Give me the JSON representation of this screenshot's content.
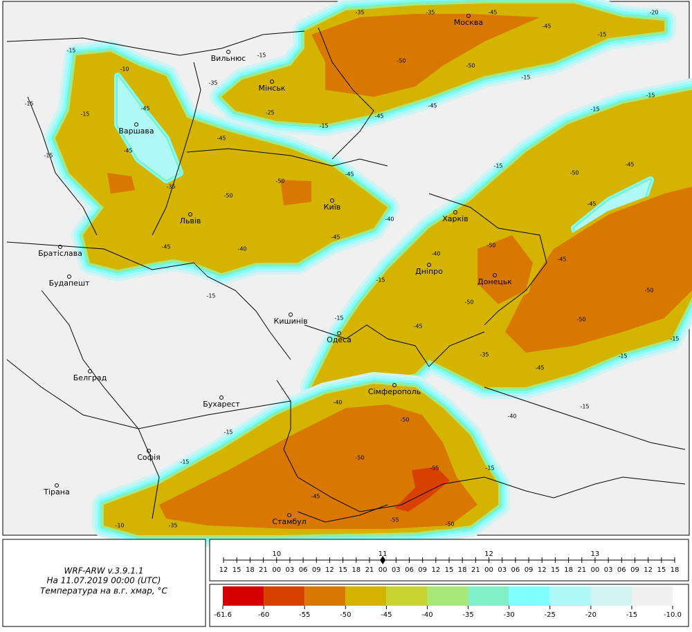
{
  "map": {
    "cities": [
      "Москва",
      "Вильнюс",
      "Мінськ",
      "Варшава",
      "Київ",
      "Львів",
      "Братіслава",
      "Будапешт",
      "Кишинів",
      "Харків",
      "Дніпро",
      "Донецьк",
      "Одеса",
      "Белград",
      "Бухарест",
      "Сімферополь",
      "Софія",
      "Тірана",
      "Стамбул"
    ],
    "contour_labels": [
      "-35",
      "-35",
      "-45",
      "-20",
      "-15",
      "-10",
      "-15",
      "-35",
      "-50",
      "-50",
      "-45",
      "-15",
      "-15",
      "-25",
      "-15",
      "-45",
      "-45",
      "-15",
      "-15",
      "-45",
      "-45",
      "-15",
      "-35",
      "-45",
      "-50",
      "-50",
      "-45",
      "-40",
      "-45",
      "-40",
      "-45",
      "-15",
      "-15",
      "-15",
      "-15",
      "-15",
      "-15",
      "-45",
      "-45",
      "-50",
      "-50",
      "-40",
      "-45",
      "-50",
      "-50",
      "-50",
      "-15",
      "-15",
      "-45",
      "-35",
      "-45",
      "-15",
      "-40",
      "-50",
      "-50",
      "-55",
      "-15",
      "-15",
      "-15",
      "-40",
      "-35",
      "-45",
      "-55",
      "-50",
      "-10"
    ]
  },
  "info": {
    "model": "WRF-ARW v.3.9.1.1",
    "date": "На 11.07.2019 00:00 (UTC)",
    "field": "Температура на в.г. хмар, °C"
  },
  "timeline": {
    "days": [
      "10",
      "11",
      "12",
      "13"
    ],
    "hours": [
      "12",
      "15",
      "18",
      "21",
      "00",
      "03",
      "06",
      "09",
      "12",
      "15",
      "18",
      "21",
      "00",
      "03",
      "06",
      "09",
      "12",
      "15",
      "18",
      "21",
      "00",
      "03",
      "06",
      "09",
      "12",
      "15",
      "18",
      "21",
      "00",
      "03",
      "06",
      "09",
      "12",
      "15",
      "18"
    ]
  },
  "legend": {
    "labels": [
      "-61.6",
      "-60",
      "-55",
      "-50",
      "-45",
      "-40",
      "-35",
      "-30",
      "-25",
      "-20",
      "-15",
      "-10.0"
    ],
    "colors": [
      "#d40000",
      "#d84000",
      "#d87800",
      "#d4b400",
      "#c8d430",
      "#a8e878",
      "#80f0c8",
      "#80ffff",
      "#b0f8f8",
      "#d0f4f4",
      "#f0f0f0"
    ]
  }
}
